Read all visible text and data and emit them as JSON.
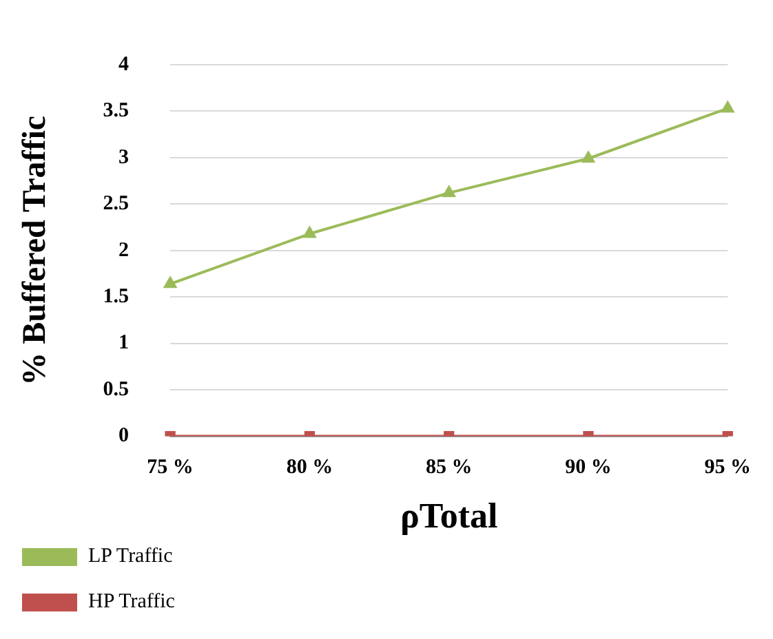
{
  "chart_data": {
    "type": "line",
    "xlabel": "ρTotal",
    "ylabel": "% Buffered Traffic",
    "categories": [
      "75 %",
      "80 %",
      "85 %",
      "90 %",
      "95 %"
    ],
    "series": [
      {
        "name": "LP Traffic",
        "color": "#9bbb59",
        "marker": "triangle",
        "values": [
          1.64,
          2.18,
          2.62,
          2.99,
          3.53
        ]
      },
      {
        "name": "HP Traffic",
        "color": "#c0504d",
        "marker": "square",
        "values": [
          0,
          0,
          0,
          0,
          0
        ]
      }
    ],
    "ylim": [
      0,
      4
    ],
    "yticks": [
      0,
      0.5,
      1,
      1.5,
      2,
      2.5,
      3,
      3.5,
      4
    ],
    "grid": "y",
    "legend": "bottom"
  }
}
